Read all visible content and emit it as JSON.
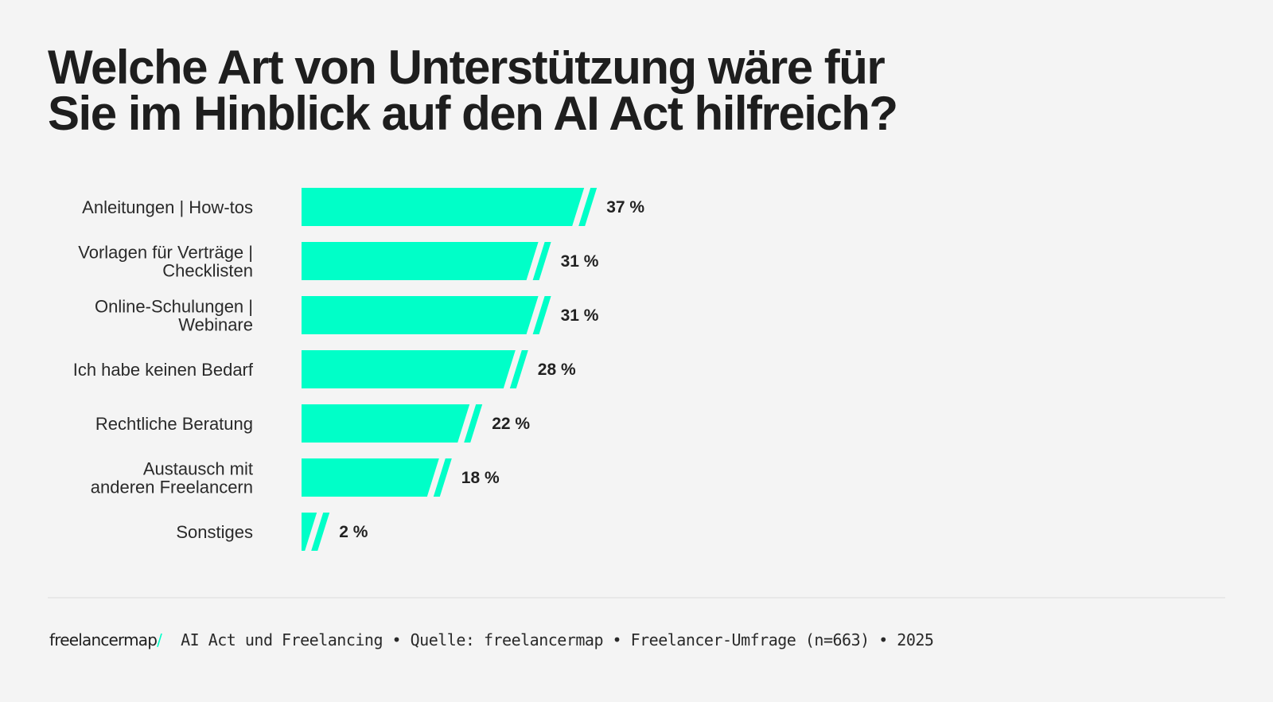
{
  "chart_data": {
    "type": "bar",
    "orientation": "horizontal",
    "title_lines": [
      "Welche Art von Unterstützung wäre für",
      "Sie im Hinblick auf den AI Act hilfreich?"
    ],
    "categories": [
      [
        "Anleitungen | How-tos"
      ],
      [
        "Vorlagen für Verträge |",
        "Checklisten"
      ],
      [
        "Online-Schulungen |",
        "Webinare"
      ],
      [
        "Ich habe keinen Bedarf"
      ],
      [
        "Rechtliche Beratung"
      ],
      [
        "Austausch mit",
        "anderen Freelancern"
      ],
      [
        "Sonstiges"
      ]
    ],
    "values": [
      37,
      31,
      31,
      28,
      22,
      18,
      2
    ],
    "value_labels": [
      "37 %",
      "31 %",
      "31 %",
      "28 %",
      "22 %",
      "18 %",
      "2 %"
    ],
    "unit": "%",
    "grid": false,
    "bar_color": "#00ffc8"
  },
  "footer": {
    "logo": "freelancermap",
    "logo_slash": "/",
    "source": "AI Act und Freelancing • Quelle: freelancermap • Freelancer-Umfrage (n=663) • 2025"
  }
}
